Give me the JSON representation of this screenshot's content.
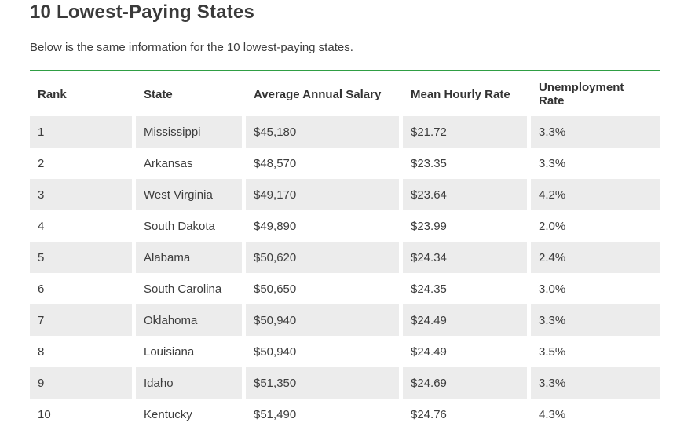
{
  "page": {
    "title": "10 Lowest-Paying States",
    "subtitle": "Below is the same information for the 10 lowest-paying states."
  },
  "colors": {
    "accent_green": "#2f9e44",
    "row_stripe": "#ececec",
    "text": "#3d3d3d"
  },
  "table": {
    "columns": [
      "Rank",
      "State",
      "Average Annual Salary",
      "Mean Hourly Rate",
      "Unemployment Rate"
    ],
    "rows": [
      [
        "1",
        "Mississippi",
        "$45,180",
        "$21.72",
        "3.3%"
      ],
      [
        "2",
        "Arkansas",
        "$48,570",
        "$23.35",
        "3.3%"
      ],
      [
        "3",
        "West Virginia",
        "$49,170",
        "$23.64",
        "4.2%"
      ],
      [
        "4",
        "South Dakota",
        "$49,890",
        "$23.99",
        "2.0%"
      ],
      [
        "5",
        "Alabama",
        "$50,620",
        "$24.34",
        "2.4%"
      ],
      [
        "6",
        "South Carolina",
        "$50,650",
        "$24.35",
        "3.0%"
      ],
      [
        "7",
        "Oklahoma",
        "$50,940",
        "$24.49",
        "3.3%"
      ],
      [
        "8",
        "Louisiana",
        "$50,940",
        "$24.49",
        "3.5%"
      ],
      [
        "9",
        "Idaho",
        "$51,350",
        "$24.69",
        "3.3%"
      ],
      [
        "10",
        "Kentucky",
        "$51,490",
        "$24.76",
        "4.3%"
      ]
    ]
  }
}
